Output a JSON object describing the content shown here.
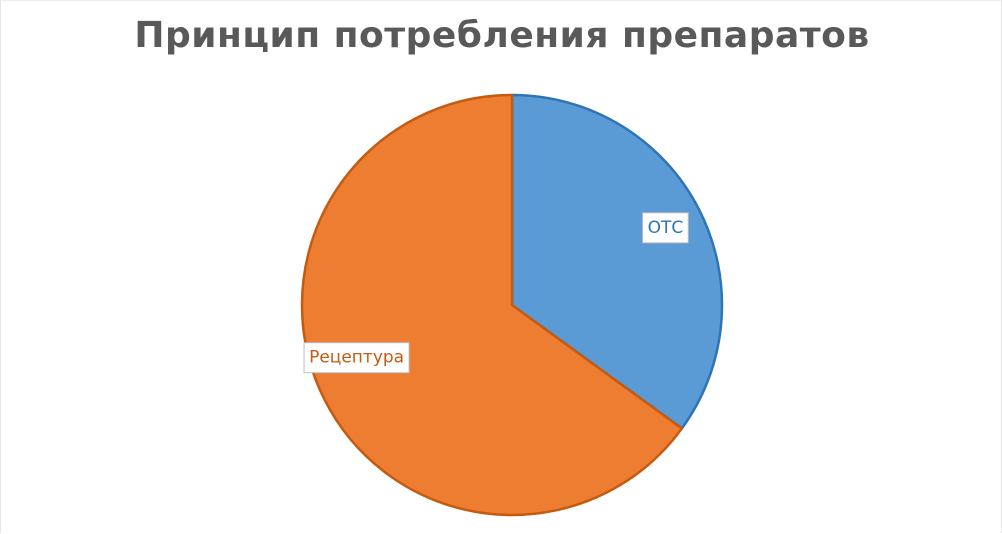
{
  "chart_data": {
    "type": "pie",
    "title": "Принцип потребления препаратов",
    "categories": [
      "ОТС",
      "Рецептура"
    ],
    "values": [
      35,
      65
    ],
    "colors": [
      "#5b9bd5",
      "#ed7d31"
    ],
    "stroke_colors": [
      "#2e75b6",
      "#c55a11"
    ],
    "start_angle_deg": 0,
    "direction": "clockwise",
    "legend": "none",
    "data_labels": "category-name"
  }
}
